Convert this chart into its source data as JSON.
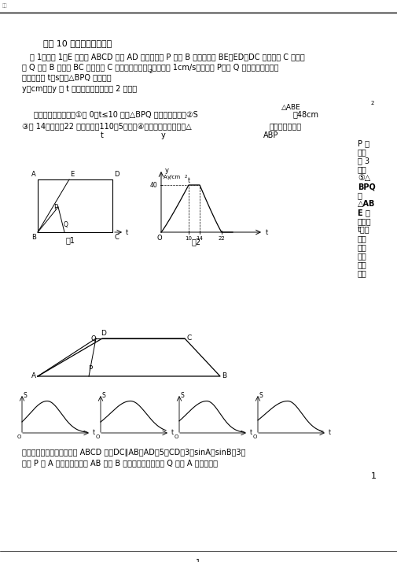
{
  "heading": "专题 10 选择填空方法综述",
  "para1": "例 1．如图 1，E 为矩形 ABCD 的边 AD 上一点，点 P 从点 B 出发沿折线 BE－ED－DC 运动到点 C 停止，",
  "para2": "点 Q 从点 B 出发沿 BC 运动到点 C 停止，它们运动的速度都是 1cm/s．假定点 P、点 Q 同时开始运动，设",
  "para3": "运动时间为 t（s），△BPQ 的面积为",
  "para4": "y（cm），y 与 t 之间的函数图象如图 2 所示．",
  "para5": "　　给出以下结论：①当 0＜t≤10 时，△BPQ 是等腰三角形；②S",
  "para5b": "＝48cm",
  "triangle_abe": "△ABE",
  "para6": "③当 14＜　　＜22 时，　　＝110－5　　；④在运动过程中，使得△",
  "is_isosceles": "是等腰三角形的",
  "triangle_abp": "ABP",
  "p_text_lines": [
    "P 点",
    "一共",
    "有 3",
    "个；",
    "⑤△",
    "BPQ",
    "与",
    "△AB",
    "E 相",
    "像时，",
    "t＝．",
    "此中",
    "正确",
    "结论",
    "的序",
    "号是"
  ],
  "fig1_label": "图1",
  "fig2_label": "图2",
  "similar_problem_heading": "同类题型：如图，在四边形 ABCD 中，DC∥AB，AD＝5，CD＝3，sinA＝sinB＝3，",
  "similar_problem_text": "动点 P 自 A 点出发，沿着边 AB 向点 B 匀速运动，同时动点 Q 自点 A 出发，沿着",
  "bg_color": "#ffffff",
  "text_color": "#000000"
}
